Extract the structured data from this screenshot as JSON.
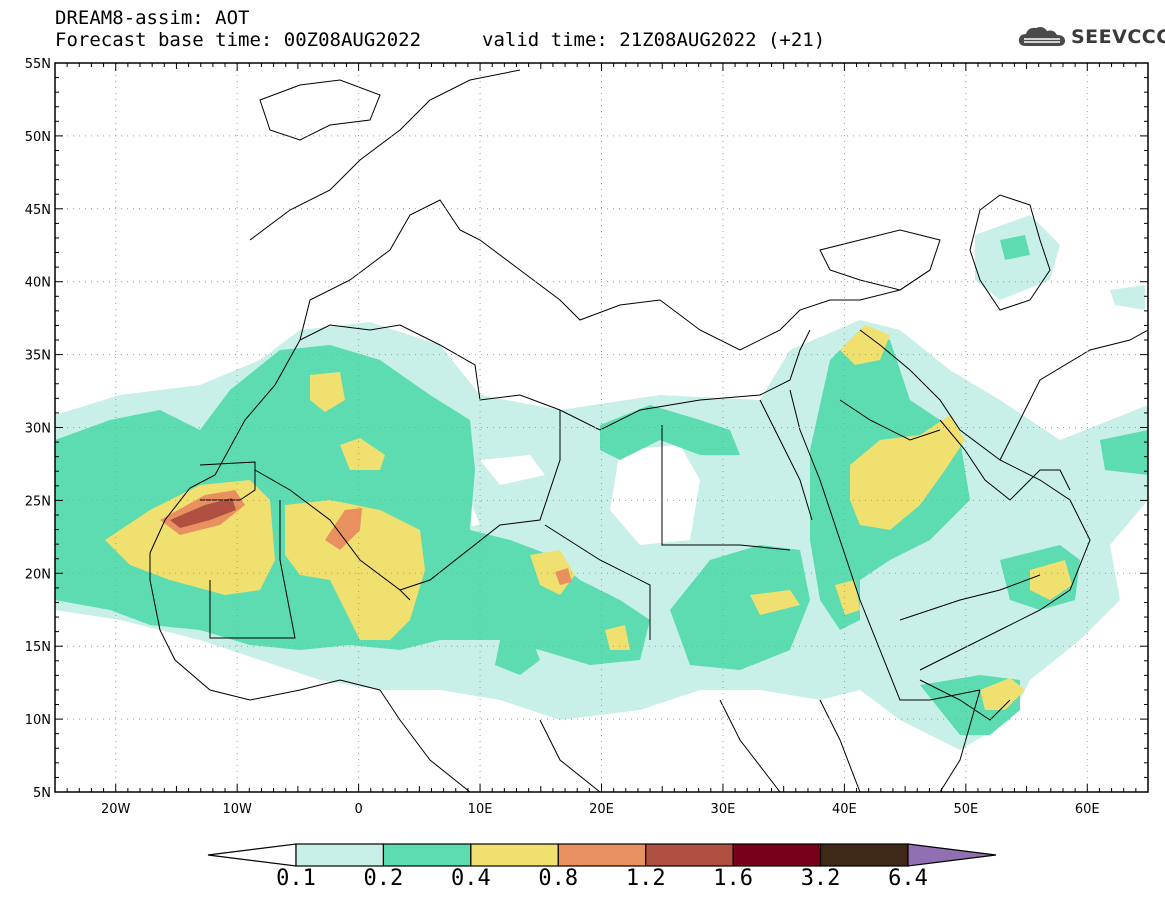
{
  "header": {
    "title": "DREAM8-assim: AOT",
    "base_time": "Forecast base time: 00Z08AUG2022",
    "valid_time": "valid time: 21Z08AUG2022 (+21)"
  },
  "logo": {
    "text": "SEEVCCC",
    "icon": "cloud-logo-icon"
  },
  "map": {
    "lat_labels": [
      "55N",
      "50N",
      "45N",
      "40N",
      "35N",
      "30N",
      "25N",
      "20N",
      "15N",
      "10N",
      "5N"
    ],
    "lon_labels": [
      "20W",
      "10W",
      "0",
      "10E",
      "20E",
      "30E",
      "40E",
      "50E",
      "60E"
    ],
    "lat_range": [
      5,
      55
    ],
    "lon_range": [
      -25,
      65
    ],
    "grid": "dotted"
  },
  "colorbar": {
    "levels": [
      "0.1",
      "0.2",
      "0.4",
      "0.8",
      "1.2",
      "1.6",
      "3.2",
      "6.4"
    ],
    "colors": [
      "#ffffff",
      "#c8f0e8",
      "#5cdcb0",
      "#f0e070",
      "#e89060",
      "#b05040",
      "#780018",
      "#402818",
      "#9070b0"
    ]
  }
}
